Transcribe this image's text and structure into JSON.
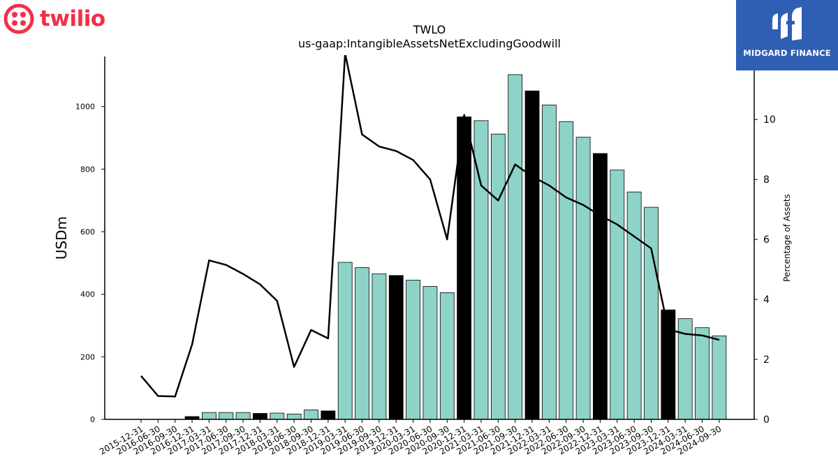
{
  "brand": {
    "name": "twilio",
    "accent": "#f22f46"
  },
  "sponsor": {
    "name": "MIDGARD FINANCE",
    "bg": "#2f5fb3"
  },
  "chart_data": {
    "type": "bar+line",
    "title": "TWLO",
    "subtitle": "us-gaap:IntangibleAssetsNetExcludingGoodwill",
    "ylabel_left": "USDm",
    "ylabel_right": "Percentage of Assets",
    "ylim_left": [
      0,
      1160
    ],
    "ylim_right": [
      0,
      12.1
    ],
    "yticks_left": [
      0,
      200,
      400,
      600,
      800,
      1000
    ],
    "yticks_right": [
      0,
      2,
      4,
      6,
      8,
      10
    ],
    "colors": {
      "bar": "#8dd3c7",
      "bar_highlight": "#000000",
      "line": "#000000"
    },
    "categories": [
      "2015-12-31",
      "2016-06-30",
      "2016-09-30",
      "2016-12-31",
      "2017-03-31",
      "2017-06-30",
      "2017-09-30",
      "2017-12-31",
      "2018-03-31",
      "2018-06-30",
      "2018-09-30",
      "2018-12-31",
      "2019-03-31",
      "2019-06-30",
      "2019-09-30",
      "2019-12-31",
      "2020-03-31",
      "2020-06-30",
      "2020-09-30",
      "2020-12-31",
      "2021-03-31",
      "2021-06-30",
      "2021-09-30",
      "2021-12-31",
      "2022-03-31",
      "2022-06-30",
      "2022-09-30",
      "2022-12-31",
      "2023-03-31",
      "2023-06-30",
      "2023-09-30",
      "2023-12-31",
      "2024-03-31",
      "2024-06-30",
      "2024-09-30"
    ],
    "series": [
      {
        "kind": "bar",
        "values": [
          0,
          0,
          0,
          9,
          22,
          22,
          22,
          19,
          20,
          17,
          30,
          27,
          502,
          485,
          465,
          460,
          445,
          425,
          405,
          967,
          955,
          912,
          1102,
          1050,
          1005,
          952,
          902,
          850,
          797,
          727,
          678,
          350,
          322,
          293,
          267
        ],
        "highlight": [
          false,
          false,
          false,
          true,
          false,
          false,
          false,
          true,
          false,
          false,
          false,
          true,
          false,
          false,
          false,
          true,
          false,
          false,
          false,
          true,
          false,
          false,
          false,
          true,
          false,
          false,
          false,
          true,
          false,
          false,
          false,
          true,
          false,
          false,
          false
        ]
      },
      {
        "kind": "line",
        "values": [
          1.45,
          0.78,
          0.76,
          2.5,
          5.3,
          5.15,
          4.85,
          4.5,
          3.95,
          1.75,
          2.98,
          2.7,
          12.2,
          9.5,
          9.1,
          8.95,
          8.65,
          8.0,
          6.0,
          10.15,
          7.8,
          7.3,
          8.5,
          8.1,
          7.8,
          7.4,
          7.15,
          6.8,
          6.5,
          6.1,
          5.7,
          3.0,
          2.85,
          2.8,
          2.65
        ]
      }
    ]
  }
}
